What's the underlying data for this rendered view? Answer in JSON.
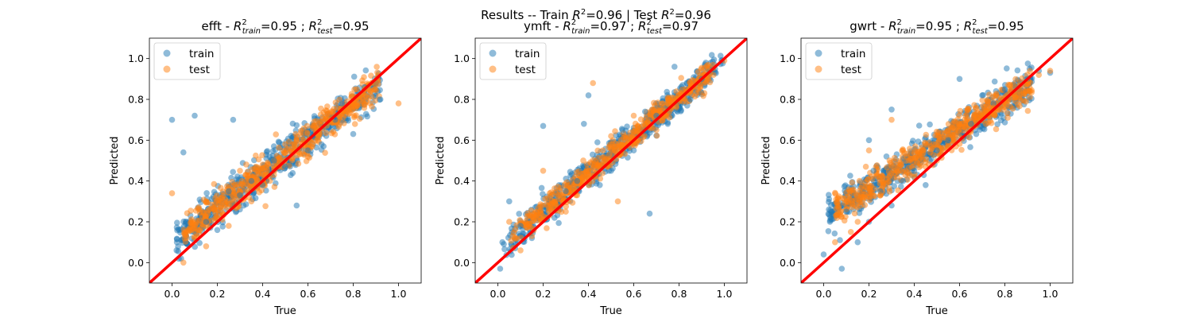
{
  "suptitle": {
    "pre_train": "Results -- Train ",
    "r": "R",
    "sup": "2",
    "mid": "=0.96 | Test ",
    "post": "=0.96"
  },
  "colors": {
    "train": "#1f77b4",
    "test": "#ff7f0e",
    "identity_line": "#ff0000",
    "axes": "#000000"
  },
  "legend": {
    "train": "train",
    "test": "test",
    "placement": "upper-left"
  },
  "chart_data": [
    {
      "type": "scatter",
      "target": "efft",
      "title": {
        "target": "efft",
        "sep": " - ",
        "r": "R",
        "sup": "2",
        "sub_train": "train",
        "train_value": "=0.95",
        "separator": " ; ",
        "sub_test": "test",
        "test_value": "=0.95"
      },
      "xlabel": "True",
      "ylabel": "Predicted",
      "xlim": [
        -0.1,
        1.1
      ],
      "ylim": [
        -0.1,
        1.1
      ],
      "xticks": [
        "0.0",
        "0.2",
        "0.4",
        "0.6",
        "0.8",
        "1.0"
      ],
      "yticks": [
        "0.0",
        "0.2",
        "0.4",
        "0.6",
        "0.8",
        "1.0"
      ],
      "grid": false,
      "identity_line": [
        [
          -0.1,
          -0.1
        ],
        [
          1.1,
          1.1
        ]
      ],
      "series": [
        {
          "name": "train",
          "points": [
            [
              0.0,
              0.7
            ],
            [
              0.1,
              0.72
            ],
            [
              0.27,
              0.7
            ],
            [
              0.05,
              0.54
            ],
            [
              0.02,
              0.06
            ],
            [
              0.04,
              0.02
            ],
            [
              0.55,
              0.28
            ],
            [
              0.62,
              0.62
            ],
            [
              0.85,
              0.86
            ],
            [
              0.9,
              0.88
            ],
            [
              0.35,
              0.4
            ],
            [
              0.45,
              0.5
            ],
            [
              0.5,
              0.47
            ],
            [
              0.72,
              0.7
            ],
            [
              0.8,
              0.63
            ],
            [
              0.2,
              0.16
            ],
            [
              0.15,
              0.2
            ],
            [
              0.4,
              0.38
            ],
            [
              0.66,
              0.58
            ],
            [
              0.3,
              0.33
            ],
            [
              0.92,
              0.8
            ],
            [
              0.6,
              0.55
            ],
            [
              0.25,
              0.35
            ],
            [
              0.75,
              0.78
            ]
          ]
        },
        {
          "name": "test",
          "points": [
            [
              0.05,
              0.0
            ],
            [
              0.0,
              0.34
            ],
            [
              0.3,
              0.45
            ],
            [
              0.55,
              0.6
            ],
            [
              0.7,
              0.7
            ],
            [
              0.85,
              0.85
            ],
            [
              0.9,
              0.88
            ],
            [
              1.0,
              0.78
            ],
            [
              0.2,
              0.22
            ],
            [
              0.35,
              0.3
            ],
            [
              0.45,
              0.43
            ],
            [
              0.6,
              0.52
            ],
            [
              0.8,
              0.78
            ],
            [
              0.15,
              0.3
            ],
            [
              0.65,
              0.68
            ],
            [
              0.4,
              0.48
            ],
            [
              0.25,
              0.18
            ],
            [
              0.5,
              0.58
            ],
            [
              0.75,
              0.73
            ],
            [
              0.1,
              0.12
            ]
          ]
        }
      ]
    },
    {
      "type": "scatter",
      "target": "ymft",
      "title": {
        "target": "ymft",
        "sep": " - ",
        "r": "R",
        "sup": "2",
        "sub_train": "train",
        "train_value": "=0.97",
        "separator": " ; ",
        "sub_test": "test",
        "test_value": "=0.97"
      },
      "xlabel": "True",
      "ylabel": "Predicted",
      "xlim": [
        -0.1,
        1.1
      ],
      "ylim": [
        -0.1,
        1.1
      ],
      "xticks": [
        "0.0",
        "0.2",
        "0.4",
        "0.6",
        "0.8",
        "1.0"
      ],
      "yticks": [
        "0.0",
        "0.2",
        "0.4",
        "0.6",
        "0.8",
        "1.0"
      ],
      "grid": false,
      "identity_line": [
        [
          -0.1,
          -0.1
        ],
        [
          1.1,
          1.1
        ]
      ],
      "series": [
        {
          "name": "train",
          "points": [
            [
              0.67,
              0.24
            ],
            [
              0.4,
              0.82
            ],
            [
              0.2,
              0.67
            ],
            [
              0.38,
              0.68
            ],
            [
              0.01,
              -0.03
            ],
            [
              0.02,
              0.1
            ],
            [
              0.78,
              0.96
            ],
            [
              0.9,
              0.9
            ],
            [
              0.99,
              0.99
            ],
            [
              0.6,
              0.55
            ],
            [
              0.5,
              0.45
            ],
            [
              0.3,
              0.35
            ],
            [
              0.1,
              0.18
            ],
            [
              0.7,
              0.72
            ],
            [
              0.85,
              0.8
            ],
            [
              0.45,
              0.38
            ],
            [
              0.55,
              0.65
            ],
            [
              0.25,
              0.22
            ],
            [
              0.15,
              0.12
            ],
            [
              0.95,
              0.96
            ],
            [
              0.35,
              0.4
            ],
            [
              0.75,
              0.68
            ],
            [
              0.05,
              0.3
            ],
            [
              0.65,
              0.74
            ]
          ]
        },
        {
          "name": "test",
          "points": [
            [
              0.53,
              0.3
            ],
            [
              0.1,
              0.06
            ],
            [
              0.5,
              0.62
            ],
            [
              0.42,
              0.88
            ],
            [
              0.6,
              0.72
            ],
            [
              0.8,
              0.82
            ],
            [
              0.95,
              0.97
            ],
            [
              1.0,
              0.99
            ],
            [
              0.25,
              0.3
            ],
            [
              0.05,
              0.2
            ],
            [
              0.3,
              0.25
            ],
            [
              0.4,
              0.45
            ],
            [
              0.7,
              0.65
            ],
            [
              0.85,
              0.88
            ],
            [
              0.15,
              0.13
            ],
            [
              0.35,
              0.33
            ],
            [
              0.55,
              0.57
            ],
            [
              0.65,
              0.7
            ],
            [
              0.75,
              0.78
            ],
            [
              0.2,
              0.45
            ]
          ]
        }
      ]
    },
    {
      "type": "scatter",
      "target": "gwrt",
      "title": {
        "target": "gwrt",
        "sep": " - ",
        "r": "R",
        "sup": "2",
        "sub_train": "train",
        "train_value": "=0.95",
        "separator": " ; ",
        "sub_test": "test",
        "test_value": "=0.95"
      },
      "xlabel": "True",
      "ylabel": "Predicted",
      "xlim": [
        -0.1,
        1.1
      ],
      "ylim": [
        -0.1,
        1.1
      ],
      "xticks": [
        "0.0",
        "0.2",
        "0.4",
        "0.6",
        "0.8",
        "1.0"
      ],
      "yticks": [
        "0.0",
        "0.2",
        "0.4",
        "0.6",
        "0.8",
        "1.0"
      ],
      "grid": false,
      "identity_line": [
        [
          -0.1,
          -0.1
        ],
        [
          1.1,
          1.1
        ]
      ],
      "series": [
        {
          "name": "train",
          "points": [
            [
              0.0,
              0.04
            ],
            [
              0.08,
              -0.03
            ],
            [
              0.1,
              0.25
            ],
            [
              0.3,
              0.75
            ],
            [
              0.2,
              0.6
            ],
            [
              0.6,
              0.9
            ],
            [
              0.7,
              0.82
            ],
            [
              0.8,
              0.85
            ],
            [
              0.9,
              0.9
            ],
            [
              1.0,
              0.93
            ],
            [
              0.4,
              0.45
            ],
            [
              0.5,
              0.55
            ],
            [
              0.15,
              0.1
            ],
            [
              0.25,
              0.35
            ],
            [
              0.35,
              0.4
            ],
            [
              0.45,
              0.38
            ],
            [
              0.55,
              0.6
            ],
            [
              0.65,
              0.68
            ],
            [
              0.75,
              0.78
            ],
            [
              0.85,
              0.86
            ],
            [
              0.95,
              0.94
            ],
            [
              0.2,
              0.2
            ],
            [
              0.3,
              0.28
            ],
            [
              0.22,
              0.45
            ]
          ]
        },
        {
          "name": "test",
          "points": [
            [
              0.05,
              0.1
            ],
            [
              0.15,
              0.2
            ],
            [
              0.2,
              0.55
            ],
            [
              0.3,
              0.7
            ],
            [
              0.35,
              0.55
            ],
            [
              0.4,
              0.42
            ],
            [
              0.5,
              0.5
            ],
            [
              0.6,
              0.62
            ],
            [
              0.7,
              0.72
            ],
            [
              0.8,
              0.8
            ],
            [
              0.9,
              0.88
            ],
            [
              1.0,
              0.94
            ],
            [
              0.25,
              0.33
            ],
            [
              0.45,
              0.47
            ],
            [
              0.55,
              0.57
            ],
            [
              0.65,
              0.65
            ],
            [
              0.75,
              0.76
            ],
            [
              0.85,
              0.86
            ],
            [
              0.95,
              0.92
            ],
            [
              0.12,
              0.15
            ]
          ]
        }
      ]
    }
  ]
}
